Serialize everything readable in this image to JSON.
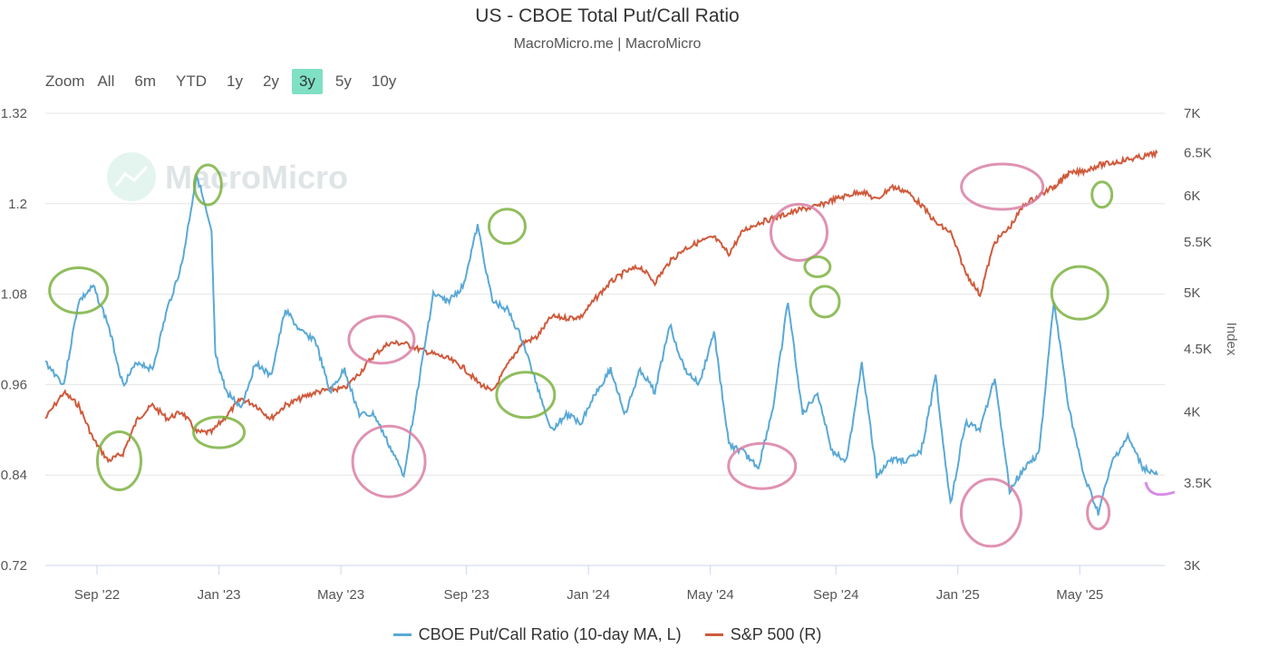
{
  "title": "US - CBOE Total Put/Call Ratio",
  "subtitle": "MacroMicro.me | MacroMicro",
  "range_selector": {
    "label": "Zoom",
    "buttons": [
      "All",
      "6m",
      "YTD",
      "1y",
      "2y",
      "3y",
      "5y",
      "10y"
    ],
    "active": "3y"
  },
  "watermark": "MacroMicro",
  "colors": {
    "put_call": "#5aa9d6",
    "spx": "#d05a3c",
    "active_button": "#7fe0c4",
    "circle_green": "#7cb342",
    "circle_pink": "#d97fa5"
  },
  "chart_data": {
    "type": "line",
    "title": "US - CBOE Total Put/Call Ratio",
    "x_labels": [
      "Sep '22",
      "Jan '23",
      "May '23",
      "Sep '23",
      "Jan '24",
      "May '24",
      "Sep '24",
      "Jan '25",
      "May '25"
    ],
    "x_range": [
      "2022-07",
      "2025-07"
    ],
    "y_left": {
      "ticks": [
        "0.72",
        "0.84",
        "0.96",
        "1.08",
        "1.2",
        "1.32"
      ],
      "range": [
        0.72,
        1.32
      ]
    },
    "y_right": {
      "title": "Index",
      "ticks": [
        "3K",
        "3.5K",
        "4K",
        "4.5K",
        "5K",
        "5.5K",
        "6K",
        "6.5K",
        "7K"
      ],
      "range": [
        3000,
        7000
      ],
      "scale": "log"
    },
    "series": [
      {
        "name": "CBOE Put/Call Ratio (10-day MA, L)",
        "axis": "left",
        "x": [
          2022.53,
          2022.58,
          2022.62,
          2022.66,
          2022.7,
          2022.74,
          2022.78,
          2022.82,
          2022.86,
          2022.9,
          2022.94,
          2022.98,
          2022.99,
          2023.02,
          2023.06,
          2023.1,
          2023.14,
          2023.18,
          2023.22,
          2023.26,
          2023.3,
          2023.34,
          2023.38,
          2023.42,
          2023.46,
          2023.5,
          2023.54,
          2023.58,
          2023.62,
          2023.66,
          2023.7,
          2023.74,
          2023.78,
          2023.82,
          2023.86,
          2023.9,
          2023.94,
          2023.98,
          2024.02,
          2024.06,
          2024.1,
          2024.14,
          2024.18,
          2024.22,
          2024.26,
          2024.3,
          2024.34,
          2024.38,
          2024.42,
          2024.46,
          2024.5,
          2024.54,
          2024.58,
          2024.62,
          2024.66,
          2024.7,
          2024.74,
          2024.78,
          2024.82,
          2024.86,
          2024.9,
          2024.94,
          2024.98,
          2025.02,
          2025.06,
          2025.1,
          2025.14,
          2025.18,
          2025.22,
          2025.26,
          2025.3,
          2025.34,
          2025.38,
          2025.42,
          2025.46,
          2025.5,
          2025.54
        ],
        "values": [
          0.99,
          0.96,
          1.07,
          1.09,
          1.04,
          0.96,
          0.99,
          0.98,
          1.06,
          1.12,
          1.24,
          1.16,
          1.0,
          0.95,
          0.93,
          0.99,
          0.97,
          1.06,
          1.03,
          1.02,
          0.95,
          0.98,
          0.92,
          0.92,
          0.88,
          0.84,
          0.96,
          1.08,
          1.07,
          1.09,
          1.17,
          1.07,
          1.06,
          1.02,
          0.96,
          0.9,
          0.92,
          0.91,
          0.95,
          0.98,
          0.92,
          0.98,
          0.95,
          1.04,
          0.98,
          0.96,
          1.03,
          0.88,
          0.87,
          0.85,
          0.93,
          1.07,
          0.92,
          0.95,
          0.87,
          0.86,
          0.99,
          0.84,
          0.86,
          0.86,
          0.87,
          0.97,
          0.8,
          0.91,
          0.9,
          0.97,
          0.82,
          0.85,
          0.87,
          1.07,
          0.93,
          0.84,
          0.79,
          0.86,
          0.89,
          0.85,
          0.84
        ]
      },
      {
        "name": "S&P 500 (R)",
        "axis": "right",
        "x": [
          2022.53,
          2022.58,
          2022.62,
          2022.66,
          2022.7,
          2022.74,
          2022.78,
          2022.82,
          2022.86,
          2022.9,
          2022.94,
          2022.98,
          2023.02,
          2023.06,
          2023.1,
          2023.14,
          2023.18,
          2023.22,
          2023.26,
          2023.3,
          2023.34,
          2023.38,
          2023.42,
          2023.46,
          2023.5,
          2023.54,
          2023.58,
          2023.62,
          2023.66,
          2023.7,
          2023.74,
          2023.78,
          2023.82,
          2023.86,
          2023.9,
          2023.94,
          2023.98,
          2024.02,
          2024.06,
          2024.1,
          2024.14,
          2024.18,
          2024.22,
          2024.26,
          2024.3,
          2024.34,
          2024.38,
          2024.42,
          2024.46,
          2024.5,
          2024.54,
          2024.58,
          2024.62,
          2024.66,
          2024.7,
          2024.74,
          2024.78,
          2024.82,
          2024.86,
          2024.9,
          2024.94,
          2024.98,
          2025.02,
          2025.06,
          2025.1,
          2025.14,
          2025.18,
          2025.22,
          2025.26,
          2025.28,
          2025.3,
          2025.34,
          2025.38,
          2025.42,
          2025.46,
          2025.5,
          2025.54
        ],
        "values": [
          3950,
          4150,
          4050,
          3800,
          3650,
          3700,
          3950,
          4050,
          3950,
          4000,
          3850,
          3850,
          3970,
          4100,
          4050,
          3950,
          4050,
          4100,
          4150,
          4170,
          4180,
          4300,
          4450,
          4550,
          4550,
          4500,
          4460,
          4420,
          4350,
          4230,
          4150,
          4360,
          4550,
          4600,
          4780,
          4770,
          4780,
          4950,
          5100,
          5200,
          5250,
          5100,
          5300,
          5430,
          5500,
          5550,
          5380,
          5620,
          5700,
          5750,
          5800,
          5850,
          5880,
          5950,
          6000,
          6050,
          5950,
          6100,
          6050,
          5900,
          5700,
          5600,
          5200,
          4980,
          5500,
          5650,
          5900,
          6000,
          6100,
          6180,
          6250,
          6280,
          6350,
          6380,
          6420,
          6450,
          6500
        ]
      }
    ],
    "annotations": "hand-drawn green and pink circles highlighting peaks and troughs"
  },
  "legend": [
    {
      "label": "CBOE Put/Call Ratio (10-day MA, L)",
      "color": "#5aa9d6"
    },
    {
      "label": "S&P 500 (R)",
      "color": "#d05a3c"
    }
  ]
}
